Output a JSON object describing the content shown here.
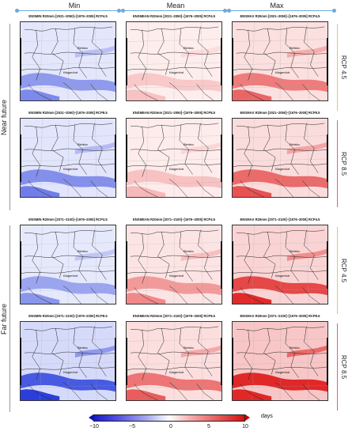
{
  "columns": [
    "Min",
    "Mean",
    "Max"
  ],
  "groups": [
    "Near future",
    "Far future"
  ],
  "scenarios": [
    "RCP 4.5",
    "RCP 8.5",
    "RCP 4.5",
    "RCP 8.5"
  ],
  "panel_titles": [
    [
      "ENSMIN R20mm [2021–2050]–[1976–2005] RCP4.5",
      "ENSMEAN R20mm [2021–2050]–[1976–2005] RCP4.5",
      "ENSMAX R20mm [2021–2050]–[1976–2005] RCP4.5"
    ],
    [
      "ENSMIN R20mm [2021–2050]–[1976–2005] RCP8.5",
      "ENSMEAN R20mm [2021–2050]–[1976–2005] RCP8.5",
      "ENSMAX R20mm [2021–2050]–[1976–2005] RCP8.5"
    ],
    [
      "ENSMIN R20mm [2071–2100]–[1976–2005] RCP4.5",
      "ENSMEAN R20mm [2071–2100]–[1976–2005] RCP4.5",
      "ENSMAX R20mm [2071–2100]–[1976–2005] RCP4.5"
    ],
    [
      "ENSMIN R20mm [2071–2100]–[1976–2005] RCP8.5",
      "ENSMEAN R20mm [2071–2100]–[1976–2005] RCP8.5",
      "ENSMAX R20mm [2071–2100]–[1976–2005] RCP8.5"
    ]
  ],
  "map_labels": {
    "city_a": "Bielsko",
    "city_b": "Kłagenfurt"
  },
  "colorbar": {
    "unit": "days",
    "ticks": [
      "−10",
      "−5",
      "0",
      "5",
      "10"
    ],
    "min_color": "#1010b8",
    "mid_color": "#ffffff",
    "max_color": "#c80000"
  },
  "colors": {
    "column_bracket": "#6fa8d8",
    "rcp45_bar": "#f0c060",
    "rcp85_bar": "#e86060"
  }
}
